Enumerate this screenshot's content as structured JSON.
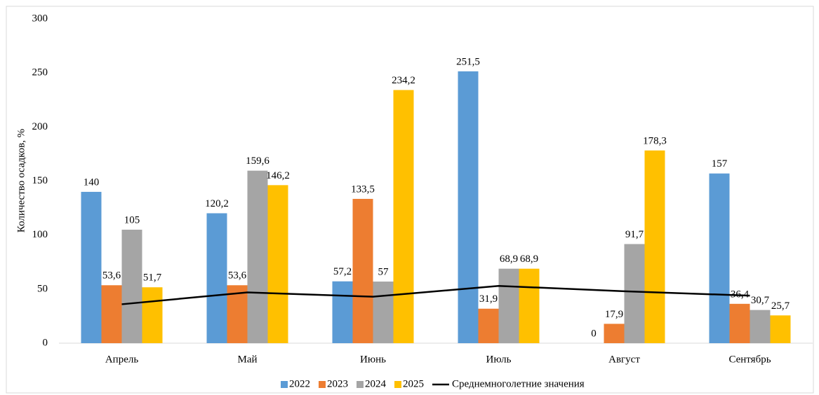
{
  "chart_data": {
    "type": "bar",
    "y_label": "Количество осадков, %",
    "categories": [
      "Апрель",
      "Май",
      "Июнь",
      "Июль",
      "Август",
      "Сентябрь"
    ],
    "series": [
      {
        "name": "2022",
        "color": "#5b9bd5",
        "values": [
          140,
          120.2,
          57.2,
          251.5,
          0,
          157
        ],
        "value_labels": [
          "140",
          "120,2",
          "57,2",
          "251,5",
          "0",
          "157"
        ]
      },
      {
        "name": "2023",
        "color": "#ed7d31",
        "values": [
          53.6,
          53.6,
          133.5,
          31.9,
          17.9,
          36.4
        ],
        "value_labels": [
          "53,6",
          "53,6",
          "133,5",
          "31,9",
          "17,9",
          "36,4"
        ]
      },
      {
        "name": "2024",
        "color": "#a5a5a5",
        "values": [
          105,
          159.6,
          57,
          68.9,
          91.7,
          30.7
        ],
        "value_labels": [
          "105",
          "159,6",
          "57",
          "68,9",
          "91,7",
          "30,7"
        ]
      },
      {
        "name": "2025",
        "color": "#ffc000",
        "values": [
          51.7,
          146.2,
          234.2,
          68.9,
          178.3,
          25.7
        ],
        "value_labels": [
          "51,7",
          "146,2",
          "234,2",
          "68,9",
          "178,3",
          "25,7"
        ]
      },
      {
        "name": "Среднемноголетние значения",
        "color": "#000000",
        "type": "line",
        "values": [
          36,
          47,
          43,
          53,
          48,
          44
        ]
      }
    ],
    "ylim": [
      0,
      300
    ],
    "yticks": [
      0,
      50,
      100,
      150,
      200,
      250,
      300
    ],
    "grid": false,
    "legend": "bottom"
  }
}
